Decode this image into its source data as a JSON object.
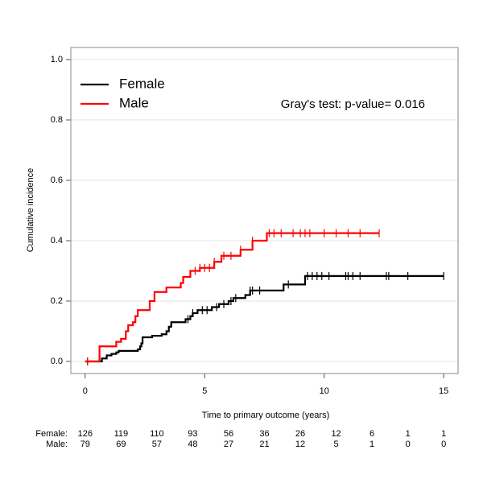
{
  "chart_data": {
    "type": "step",
    "ylabel": "Cumulative incidence",
    "xlabel": "Time to primary outcome (years)",
    "annotation": "Gray's test: p-value= 0.016",
    "xlim": [
      -0.6,
      15.6
    ],
    "ylim": [
      -0.04,
      1.04
    ],
    "xticks": [
      0,
      5,
      10,
      15
    ],
    "yticks": [
      {
        "value": 0,
        "label": "0.0"
      },
      0.2,
      0.4,
      0.6,
      0.8,
      {
        "value": 1,
        "label": "1.0"
      }
    ],
    "grid": true,
    "legend": "top-left",
    "series": [
      {
        "name": "Female",
        "color": "#000000",
        "x": [
          0,
          0.7,
          0.9,
          1.1,
          1.3,
          1.4,
          2.2,
          2.3,
          2.35,
          2.4,
          2.8,
          3.2,
          3.4,
          3.5,
          3.6,
          4.2,
          4.4,
          4.5,
          4.7,
          5.3,
          5.6,
          6.0,
          6.2,
          6.7,
          6.9,
          8.3,
          9.2,
          15
        ],
        "values": [
          0,
          0.01,
          0.02,
          0.025,
          0.03,
          0.035,
          0.04,
          0.05,
          0.06,
          0.08,
          0.085,
          0.09,
          0.1,
          0.115,
          0.13,
          0.14,
          0.15,
          0.16,
          0.17,
          0.18,
          0.19,
          0.2,
          0.21,
          0.22,
          0.235,
          0.255,
          0.283,
          0.283
        ],
        "censored": [
          0.1,
          4.3,
          4.5,
          4.9,
          5.1,
          5.5,
          5.8,
          6.1,
          6.3,
          6.9,
          7.0,
          7.3,
          8.5,
          9.3,
          9.5,
          9.7,
          9.9,
          10.2,
          10.9,
          11.0,
          11.2,
          11.5,
          12.6,
          12.7,
          13.5,
          15.0
        ]
      },
      {
        "name": "Male",
        "color": "#ff0000",
        "x": [
          0,
          0.6,
          1.3,
          1.5,
          1.7,
          1.8,
          2.0,
          2.1,
          2.2,
          2.7,
          2.9,
          3.4,
          4.0,
          4.1,
          4.4,
          4.8,
          5.4,
          5.7,
          6.5,
          7.0,
          7.6,
          12.3
        ],
        "values": [
          0,
          0.05,
          0.065,
          0.075,
          0.1,
          0.12,
          0.13,
          0.15,
          0.17,
          0.2,
          0.23,
          0.245,
          0.26,
          0.28,
          0.3,
          0.31,
          0.33,
          0.35,
          0.37,
          0.4,
          0.425,
          0.425
        ],
        "censored": [
          0.1,
          4.6,
          4.8,
          5.0,
          5.2,
          5.4,
          5.8,
          6.1,
          6.5,
          7.0,
          7.7,
          7.9,
          8.2,
          8.7,
          9.0,
          9.2,
          9.4,
          10.0,
          10.5,
          11.0,
          11.5,
          12.3
        ]
      }
    ],
    "risk_table": [
      {
        "label": "Female:",
        "values": [
          126,
          119,
          110,
          93,
          56,
          36,
          26,
          12,
          6,
          1,
          1
        ]
      },
      {
        "label": "Male:",
        "values": [
          79,
          69,
          57,
          48,
          27,
          21,
          12,
          5,
          1,
          0,
          0
        ]
      }
    ]
  }
}
